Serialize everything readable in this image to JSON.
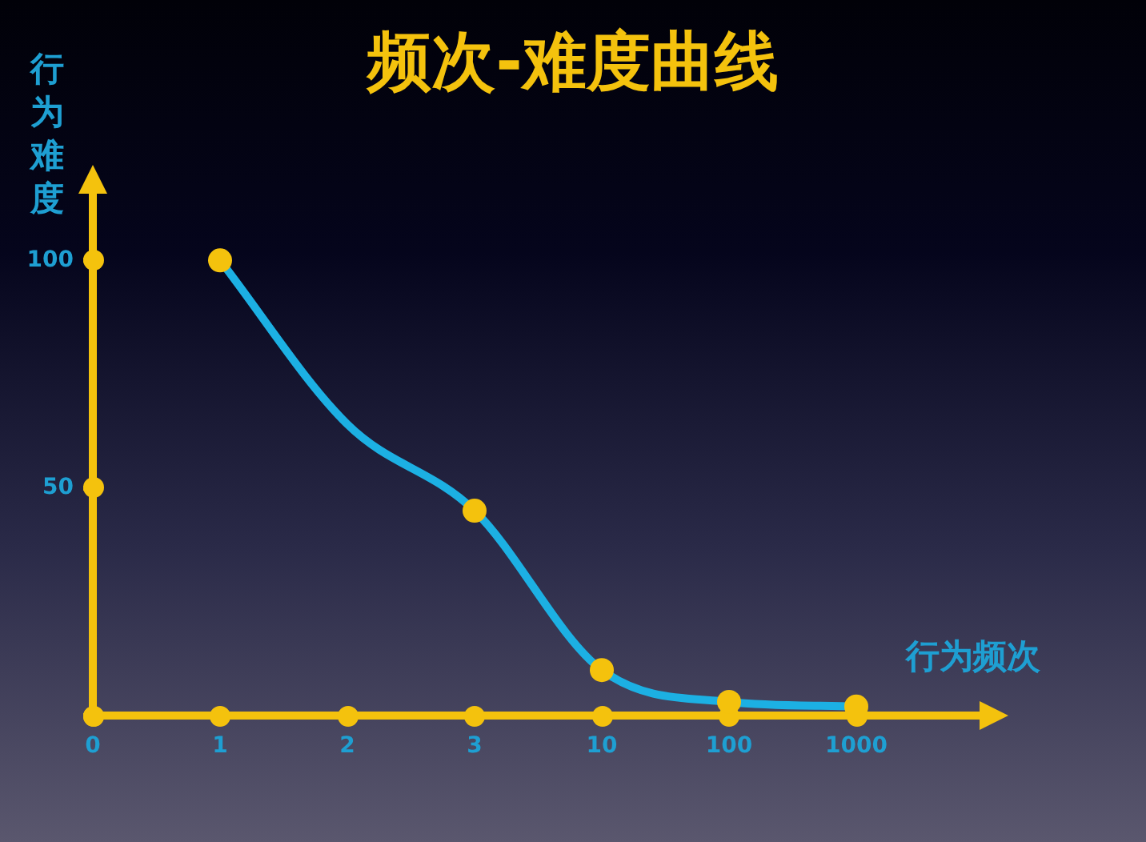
{
  "chart_data": {
    "type": "line",
    "title": "频次-难度曲线",
    "xlabel": "行为频次",
    "ylabel": "行为难度",
    "categories": [
      "0",
      "1",
      "2",
      "3",
      "10",
      "100",
      "1000"
    ],
    "ylim": [
      0,
      115
    ],
    "yticks": [
      {
        "value": 0,
        "label": null
      },
      50,
      100
    ],
    "series": [
      {
        "type": "line",
        "color": "#1cb0e3",
        "marker": "none",
        "values": [
          null,
          100,
          64,
          45,
          10,
          3,
          2
        ]
      },
      {
        "type": "scatter",
        "color": "#f4c20d",
        "values": [
          null,
          100,
          null,
          45,
          10,
          3,
          2
        ]
      }
    ],
    "marker": "circle",
    "legend": false
  }
}
